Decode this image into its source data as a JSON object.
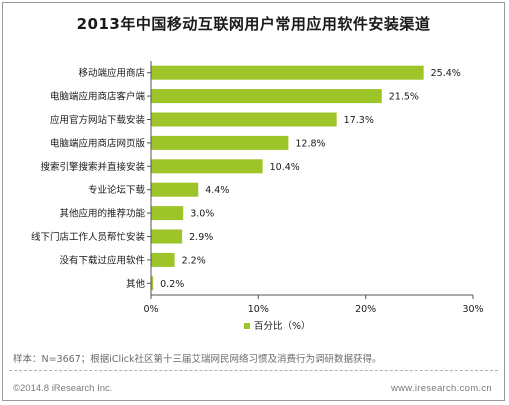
{
  "title": "2013年中国移动互联网用户常用应用软件安装渠道",
  "chart_data": {
    "type": "bar",
    "orientation": "horizontal",
    "categories": [
      "移动端应用商店",
      "电脑端应用商店客户端",
      "应用官方网站下载安装",
      "电脑端应用商店网页版",
      "搜索引擎搜索并直接安装",
      "专业论坛下载",
      "其他应用的推荐功能",
      "线下门店工作人员帮忙安装",
      "没有下载过应用软件",
      "其他"
    ],
    "series": [
      {
        "name": "百分比（%）",
        "values": [
          25.4,
          21.5,
          17.3,
          12.8,
          10.4,
          4.4,
          3.0,
          2.9,
          2.2,
          0.2
        ],
        "labels": [
          "25.4%",
          "21.5%",
          "17.3%",
          "12.8%",
          "10.4%",
          "4.4%",
          "3.0%",
          "2.9%",
          "2.2%",
          "0.2%"
        ]
      }
    ],
    "xlim": [
      0,
      30
    ],
    "xticks": [
      0,
      10,
      20,
      30
    ],
    "xtick_labels": [
      "0%",
      "10%",
      "20%",
      "30%"
    ],
    "grid": false,
    "legend_position": "bottom",
    "bar_color": "#9dc428"
  },
  "note": "样本：N=3667；根据iClick社区第十三届艾瑞网民网络习惯及消费行为调研数据获得。",
  "copyright": "©2014.8 iResearch Inc.",
  "website": "www.iresearch.com.cn"
}
